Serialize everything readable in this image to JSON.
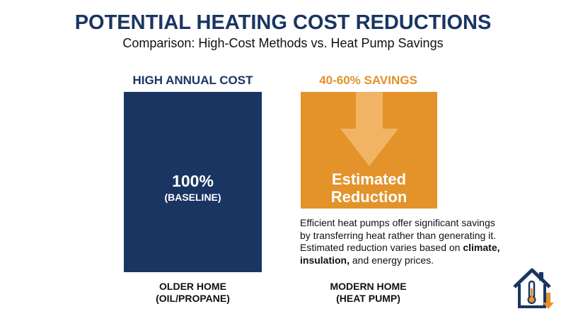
{
  "header": {
    "title": "POTENTIAL HEATING COST REDUCTIONS",
    "subtitle": "Comparison: High-Cost Methods vs. Heat Pump Savings"
  },
  "left": {
    "heading": "HIGH ANNUAL COST",
    "box_value": "100%",
    "box_note": "(BASELINE)",
    "footer_line1": "OLDER HOME",
    "footer_line2": "(OIL/PROPANE)"
  },
  "right": {
    "heading": "40-60% SAVINGS",
    "box_line1": "Estimated",
    "box_line2": "Reduction",
    "footer_line1": "MODERN HOME",
    "footer_line2": "(HEAT PUMP)",
    "description": [
      "Efficient heat pumps offer significant savings by transferring heat rather than generating it. Estimated reduction varies based on ",
      "climate,",
      " ",
      "insulation,",
      " and energy prices."
    ]
  }
}
